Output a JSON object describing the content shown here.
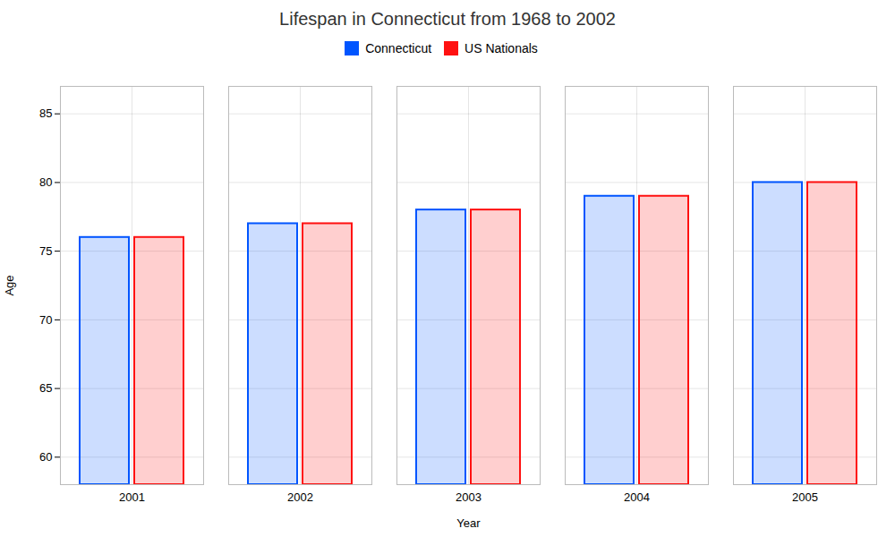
{
  "chart_data": {
    "type": "bar",
    "title": "Lifespan in Connecticut from 1968 to 2002",
    "xlabel": "Year",
    "ylabel": "Age",
    "categories": [
      "2001",
      "2002",
      "2003",
      "2004",
      "2005"
    ],
    "series": [
      {
        "name": "Connecticut",
        "color": "#0055ff",
        "values": [
          76,
          77,
          78,
          79,
          80
        ]
      },
      {
        "name": "US Nationals",
        "color": "#ff1111",
        "values": [
          76,
          77,
          78,
          79,
          80
        ]
      }
    ],
    "ylim": [
      58,
      87
    ],
    "yticks": [
      60,
      65,
      70,
      75,
      80,
      85
    ],
    "grid": true,
    "legend": "top"
  }
}
